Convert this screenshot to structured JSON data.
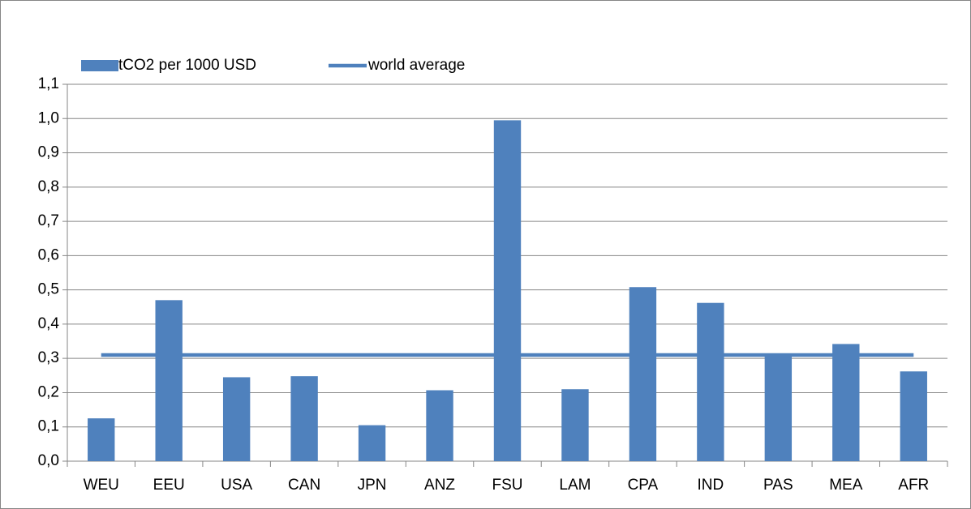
{
  "chart_data": {
    "type": "bar",
    "categories": [
      "WEU",
      "EEU",
      "USA",
      "CAN",
      "JPN",
      "ANZ",
      "FSU",
      "LAM",
      "CPA",
      "IND",
      "PAS",
      "MEA",
      "AFR"
    ],
    "series": [
      {
        "name": "tCO2 per 1000 USD",
        "type": "bar",
        "color": "#4f81bd",
        "values": [
          0.125,
          0.47,
          0.245,
          0.248,
          0.105,
          0.207,
          0.995,
          0.21,
          0.508,
          0.462,
          0.31,
          0.342,
          0.262
        ]
      },
      {
        "name": "world average",
        "type": "line",
        "color": "#4f81bd",
        "values": [
          0.31,
          0.31,
          0.31,
          0.31,
          0.31,
          0.31,
          0.31,
          0.31,
          0.31,
          0.31,
          0.31,
          0.31,
          0.31
        ]
      }
    ],
    "ylim": [
      0,
      1.1
    ],
    "yticks": [
      {
        "value": 0,
        "label": "0,0"
      },
      {
        "value": 0.1,
        "label": "0,1"
      },
      {
        "value": 0.2,
        "label": "0,2"
      },
      {
        "value": 0.3,
        "label": "0,3"
      },
      {
        "value": 0.4,
        "label": "0,4"
      },
      {
        "value": 0.5,
        "label": "0,5"
      },
      {
        "value": 0.6,
        "label": "0,6"
      },
      {
        "value": 0.7,
        "label": "0,7"
      },
      {
        "value": 0.8,
        "label": "0,8"
      },
      {
        "value": 0.9,
        "label": "0,9"
      },
      {
        "value": 1.0,
        "label": "1,0"
      },
      {
        "value": 1.1,
        "label": "1,1"
      }
    ],
    "grid": true,
    "legend": "top-left"
  }
}
